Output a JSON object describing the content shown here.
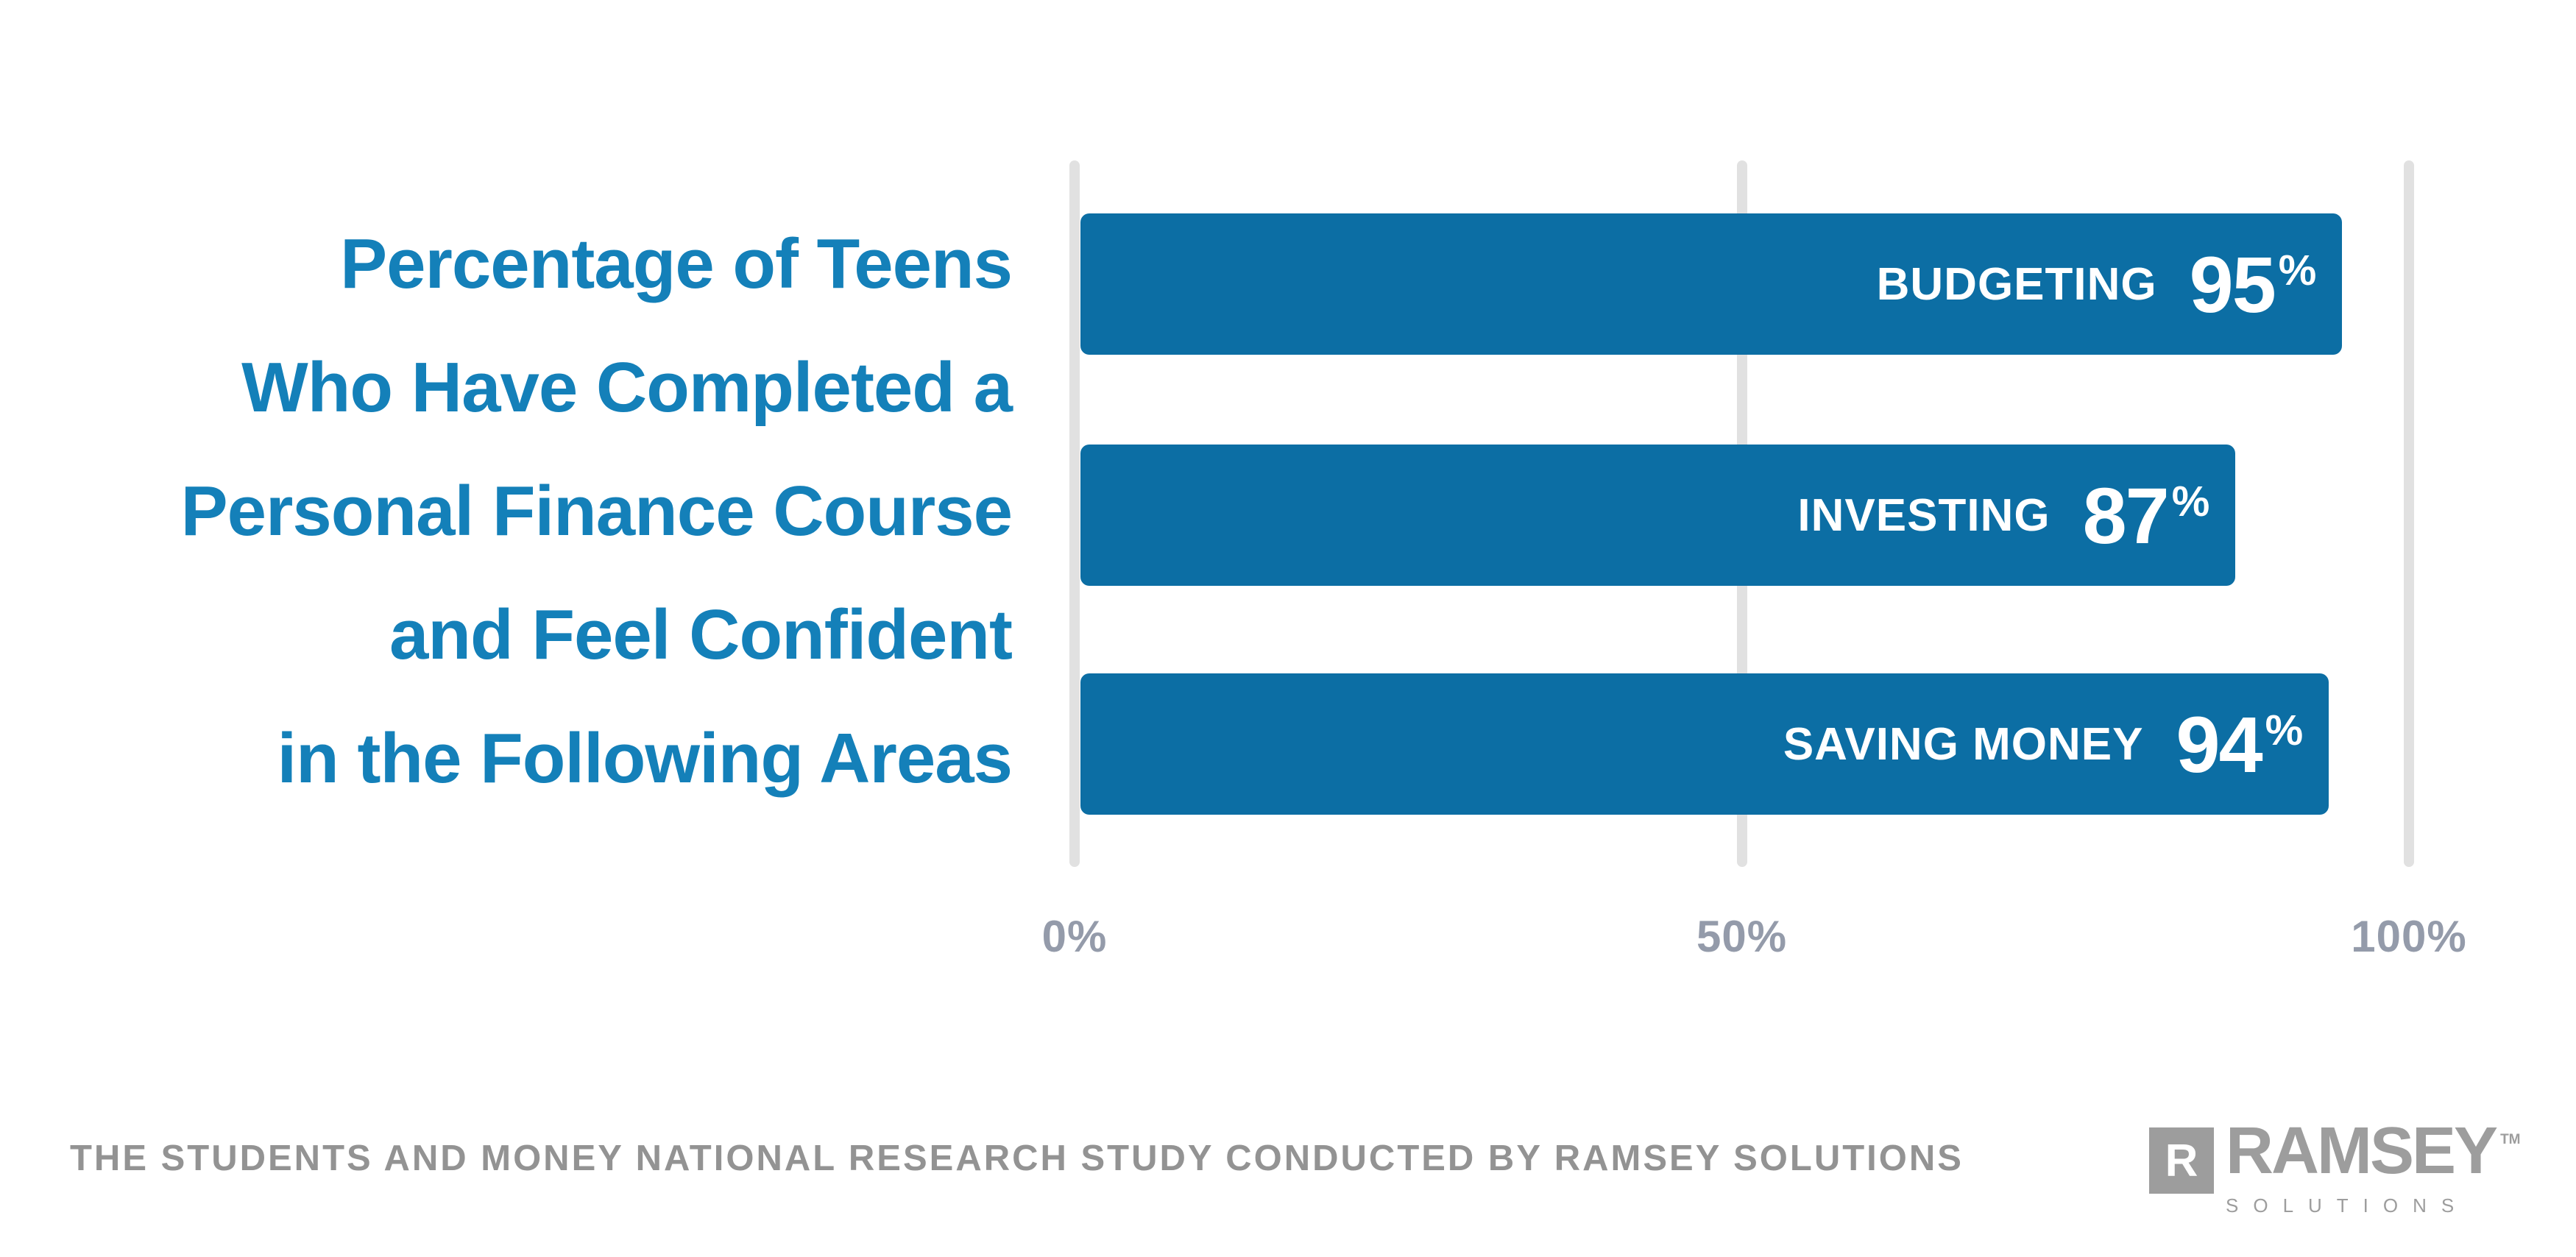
{
  "title": {
    "lines": [
      "Percentage of Teens",
      "Who Have Completed a",
      "Personal Finance Course",
      "and Feel Confident",
      "in the Following Areas"
    ]
  },
  "chart_data": {
    "type": "bar",
    "orientation": "horizontal",
    "title": "Percentage of Teens Who Have Completed a Personal Finance Course and Feel Confident in the Following Areas",
    "categories": [
      "BUDGETING",
      "INVESTING",
      "SAVING MONEY"
    ],
    "values": [
      95,
      87,
      94
    ],
    "value_labels": [
      "95%",
      "87%",
      "94%"
    ],
    "percent_symbol": "%",
    "xlabel": "",
    "ylabel": "",
    "xlim": [
      0,
      100
    ],
    "xticks": [
      {
        "value": 0,
        "label": "0%"
      },
      {
        "value": 50,
        "label": "50%"
      },
      {
        "value": 100,
        "label": "100%"
      }
    ],
    "grid": true,
    "legend": false,
    "bar_labels_position": "inside-right"
  },
  "footer": {
    "source_text": "THE STUDENTS AND MONEY NATIONAL RESEARCH STUDY CONDUCTED BY RAMSEY SOLUTIONS"
  },
  "logo": {
    "mark_letter": "R",
    "wordmark": "RAMSEY",
    "subtext": "SOLUTIONS",
    "trademark": "TM"
  },
  "colors": {
    "title_blue": "#1480B9",
    "bar_blue": "#0C6EA4",
    "grid_gray": "#E1E1E1",
    "tick_gray": "#949BAA",
    "footer_gray": "#939393",
    "logo_gray": "#9D9D9D",
    "bar_text": "#FFFFFF",
    "background": "#FFFFFF"
  }
}
